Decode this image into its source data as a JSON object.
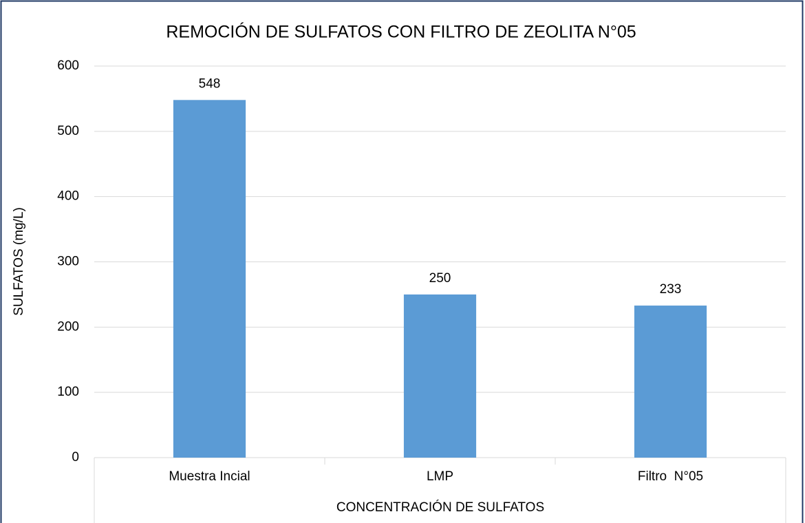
{
  "chart_data": {
    "type": "bar",
    "title": "REMOCIÓN DE SULFATOS CON FILTRO DE ZEOLITA N°05",
    "x_label": "CONCENTRACIÓN DE SULFATOS",
    "y_label": "SULFATOS (mg/L)",
    "categories": [
      "Muestra Incial",
      "LMP",
      "Filtro  N°05"
    ],
    "values": [
      548,
      250,
      233
    ],
    "color": "#5b9bd5",
    "ylim": [
      0,
      600
    ],
    "yticks": [
      0,
      100,
      200,
      300,
      400,
      500,
      600
    ],
    "grid": true
  }
}
